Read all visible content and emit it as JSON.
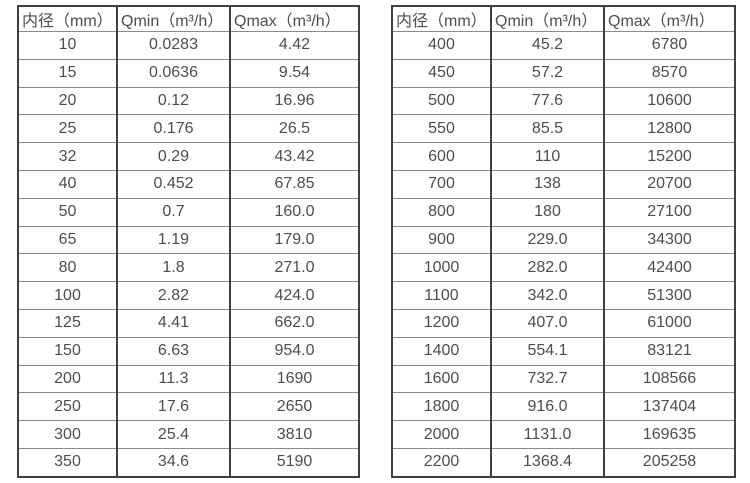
{
  "page": {
    "background": "#ffffff",
    "text_color": "#4d4d4d",
    "border_dark": "#3f3f3f",
    "border_light": "#8a8a8a"
  },
  "tables": [
    {
      "name": "small-diameters",
      "headers": [
        "内径（mm）",
        "Qmin（m³/h）",
        "Qmax（m³/h）"
      ],
      "rows": [
        [
          "10",
          "0.0283",
          "4.42"
        ],
        [
          "15",
          "0.0636",
          "9.54"
        ],
        [
          "20",
          "0.12",
          "16.96"
        ],
        [
          "25",
          "0.176",
          "26.5"
        ],
        [
          "32",
          "0.29",
          "43.42"
        ],
        [
          "40",
          "0.452",
          "67.85"
        ],
        [
          "50",
          "0.7",
          "160.0"
        ],
        [
          "65",
          "1.19",
          "179.0"
        ],
        [
          "80",
          "1.8",
          "271.0"
        ],
        [
          "100",
          "2.82",
          "424.0"
        ],
        [
          "125",
          "4.41",
          "662.0"
        ],
        [
          "150",
          "6.63",
          "954.0"
        ],
        [
          "200",
          "11.3",
          "1690"
        ],
        [
          "250",
          "17.6",
          "2650"
        ],
        [
          "300",
          "25.4",
          "3810"
        ],
        [
          "350",
          "34.6",
          "5190"
        ]
      ]
    },
    {
      "name": "large-diameters",
      "headers": [
        "内径（mm）",
        "Qmin（m³/h）",
        "Qmax（m³/h）"
      ],
      "rows": [
        [
          "400",
          "45.2",
          "6780"
        ],
        [
          "450",
          "57.2",
          "8570"
        ],
        [
          "500",
          "77.6",
          "10600"
        ],
        [
          "550",
          "85.5",
          "12800"
        ],
        [
          "600",
          "110",
          "15200"
        ],
        [
          "700",
          "138",
          "20700"
        ],
        [
          "800",
          "180",
          "27100"
        ],
        [
          "900",
          "229.0",
          "34300"
        ],
        [
          "1000",
          "282.0",
          "42400"
        ],
        [
          "1100",
          "342.0",
          "51300"
        ],
        [
          "1200",
          "407.0",
          "61000"
        ],
        [
          "1400",
          "554.1",
          "83121"
        ],
        [
          "1600",
          "732.7",
          "108566"
        ],
        [
          "1800",
          "916.0",
          "137404"
        ],
        [
          "2000",
          "1131.0",
          "169635"
        ],
        [
          "2200",
          "1368.4",
          "205258"
        ]
      ]
    }
  ]
}
